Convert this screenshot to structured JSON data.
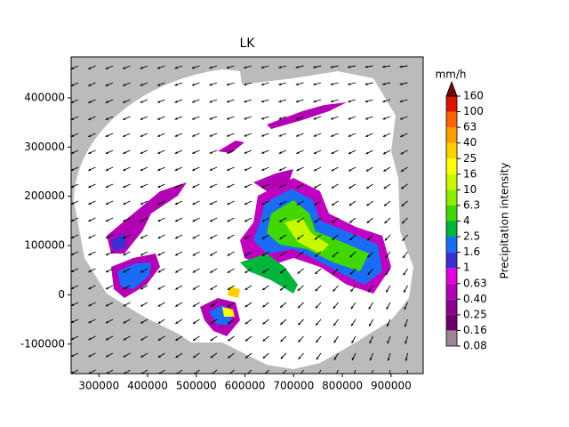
{
  "chart_data": {
    "type": "raster-map",
    "title": "LK",
    "xlim": [
      243000,
      966000
    ],
    "ylim": [
      -160000,
      483000
    ],
    "xticks": [
      300000,
      400000,
      500000,
      600000,
      700000,
      800000,
      900000
    ],
    "yticks": [
      -100000,
      0,
      100000,
      200000,
      300000,
      400000
    ],
    "colorbar": {
      "unit": "mm/h",
      "label": "Precipitation intensity",
      "extend": "max",
      "extend_color": "#7a0000",
      "levels": [
        0.08,
        0.16,
        0.25,
        {
          "value": 0.4,
          "label": "0.40"
        },
        0.63,
        1,
        1.6,
        2.5,
        4,
        6.3,
        10,
        16,
        25,
        40,
        63,
        100,
        160
      ],
      "colors": [
        "#9e8496",
        "#6a0068",
        "#8c008c",
        "#b400b4",
        "#e000e0",
        "#3a2fd0",
        "#1a6cf5",
        "#00b43c",
        "#40d800",
        "#90ec00",
        "#c8f800",
        "#ffff00",
        "#ffd000",
        "#ff9c00",
        "#ff6400",
        "#dc1400"
      ]
    }
  }
}
